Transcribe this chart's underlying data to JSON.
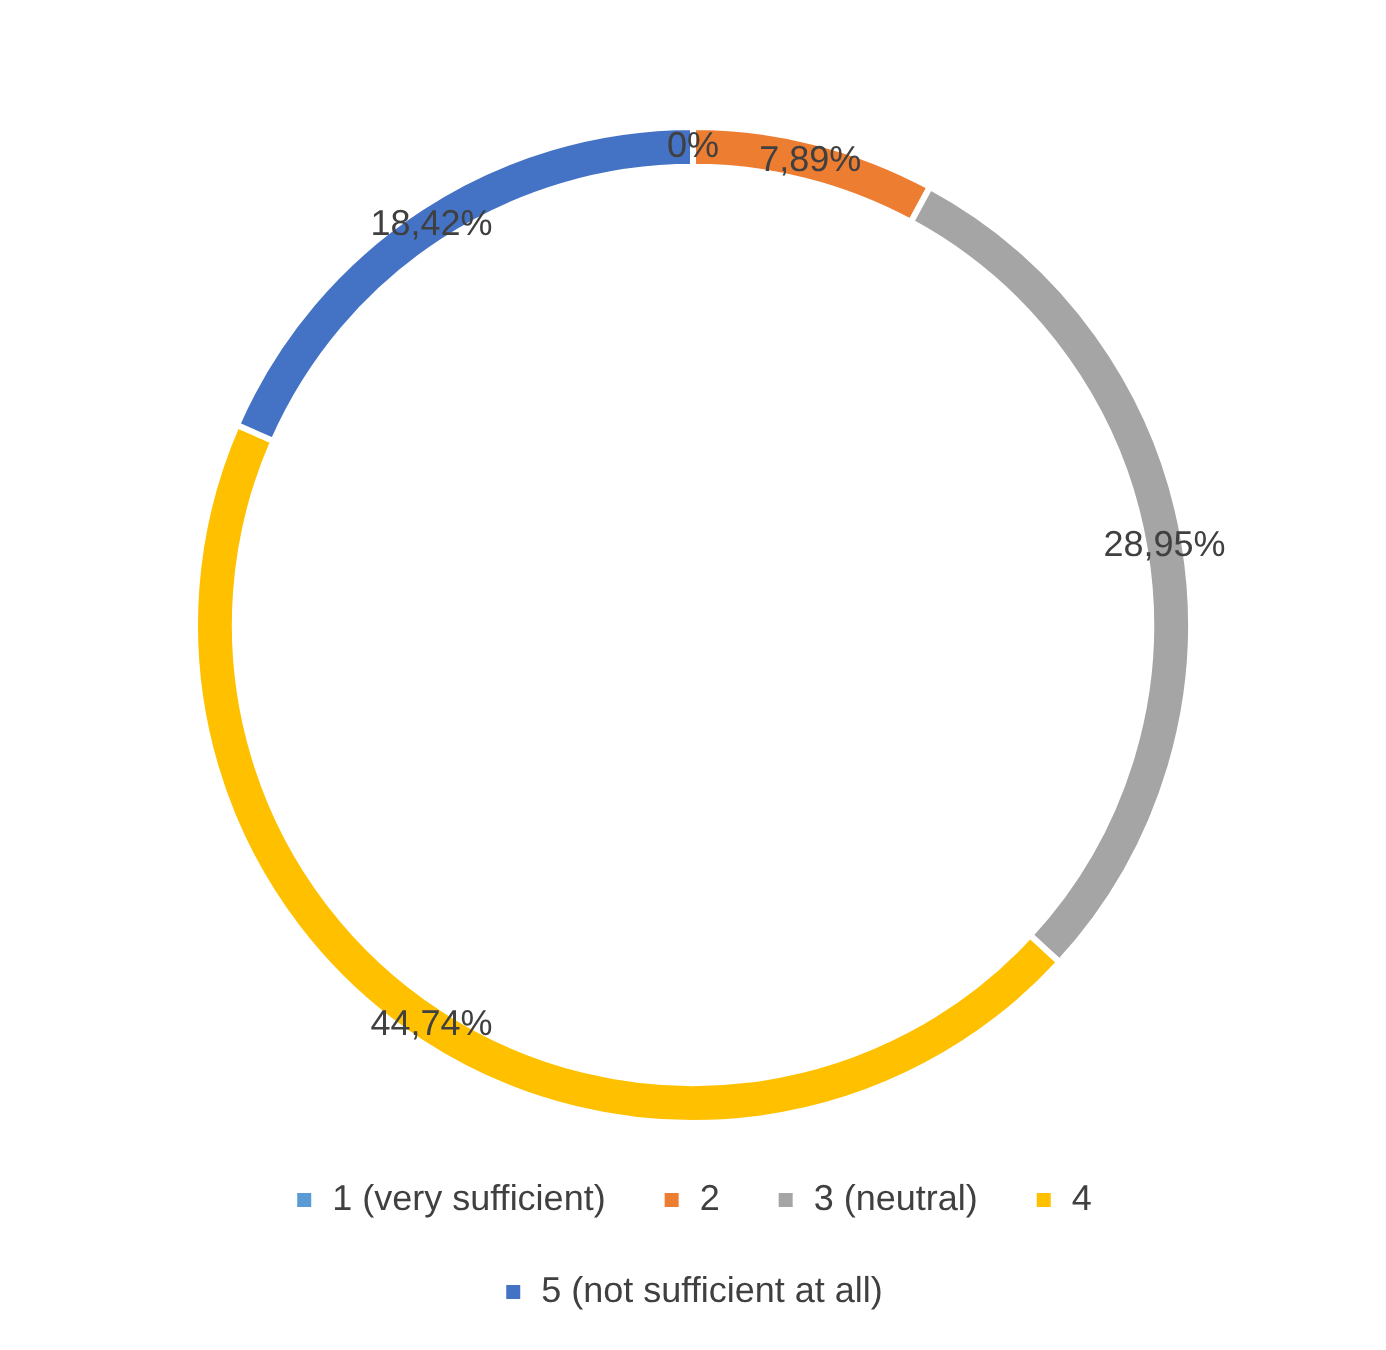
{
  "chart_data": {
    "type": "donut",
    "categories": [
      "1 (very sufficient)",
      "2",
      "3 (neutral)",
      "4",
      "5 (not sufficient at all)"
    ],
    "values": [
      0,
      7.89,
      28.95,
      44.74,
      18.42
    ],
    "value_labels": [
      "0%",
      "7,89%",
      "28,95%",
      "44,74%",
      "18,42%"
    ],
    "colors": [
      "#5b9bd5",
      "#ed7d31",
      "#a5a5a5",
      "#ffc000",
      "#4472c4"
    ],
    "legend": "bottom"
  }
}
